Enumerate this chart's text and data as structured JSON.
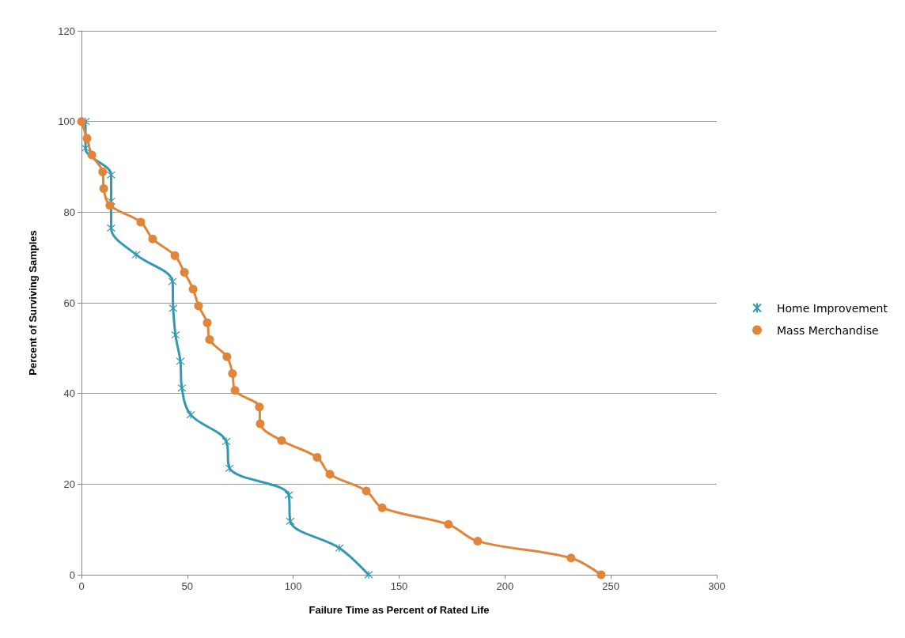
{
  "chart_data": {
    "type": "line",
    "xlabel": "Failure Time as Percent of Rated Life",
    "ylabel": "Percent of Surviving Samples",
    "xlim": [
      0,
      300
    ],
    "xticks": [
      0,
      50,
      100,
      150,
      200,
      250,
      300
    ],
    "ylim": [
      0,
      120
    ],
    "yticks": [
      0,
      20,
      40,
      60,
      80,
      100,
      120
    ],
    "grid": "y",
    "legend": "right",
    "series": [
      {
        "name": "Home Improvement",
        "color": "#3399b3",
        "marker": "cross",
        "x": [
          1.9,
          1.9,
          14,
          14,
          14,
          25.8,
          43,
          43.3,
          44.4,
          46.7,
          47.4,
          51.6,
          68.4,
          69.9,
          97.9,
          98.6,
          121.8,
          135.6
        ],
        "values": [
          100,
          94.1,
          88.2,
          82.4,
          76.5,
          70.6,
          64.7,
          58.8,
          52.9,
          47.1,
          41.2,
          35.3,
          29.4,
          23.5,
          17.6,
          11.8,
          5.9,
          0
        ]
      },
      {
        "name": "Mass Merchandise",
        "color": "#e0853a",
        "marker": "circle",
        "x": [
          0,
          2.6,
          4.9,
          10,
          10.5,
          13.4,
          28,
          33.6,
          44.1,
          48.6,
          52.7,
          55.3,
          59.4,
          60.5,
          68.7,
          71.3,
          72.5,
          84,
          84.4,
          94.5,
          111.3,
          117.3,
          134.5,
          142,
          173.3,
          187.1,
          231.2,
          245.4
        ],
        "values": [
          100,
          96.3,
          92.6,
          88.9,
          85.2,
          81.5,
          77.8,
          74.1,
          70.4,
          66.7,
          63,
          59.3,
          55.6,
          51.9,
          48.1,
          44.4,
          40.7,
          37,
          33.3,
          29.6,
          25.9,
          22.2,
          18.5,
          14.8,
          11.1,
          7.4,
          3.7,
          0
        ]
      }
    ]
  }
}
